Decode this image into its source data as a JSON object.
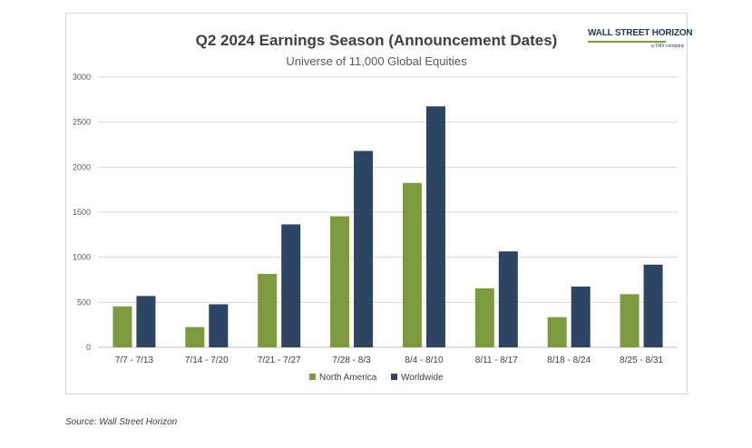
{
  "chart_data": {
    "type": "bar",
    "title": "Q2 2024 Earnings Season (Announcement Dates)",
    "subtitle": "Universe of 11,000 Global Equities",
    "categories": [
      "7/7 - 7/13",
      "7/14 - 7/20",
      "7/21 - 7/27",
      "7/28 - 8/3",
      "8/4 - 8/10",
      "8/11 - 8/17",
      "8/18 - 8/24",
      "8/25 - 8/31"
    ],
    "series": [
      {
        "name": "North America",
        "color": "#7e9a3f",
        "values": [
          455,
          225,
          815,
          1455,
          1825,
          655,
          335,
          590
        ]
      },
      {
        "name": "Worldwide",
        "color": "#2e4463",
        "values": [
          570,
          478,
          1365,
          2180,
          2675,
          1065,
          675,
          918
        ]
      }
    ],
    "ylim": [
      0,
      3000
    ],
    "yticks": [
      "0",
      "500",
      "1000",
      "1500",
      "2000",
      "2500",
      "3000"
    ],
    "ytick_values": [
      0,
      500,
      1000,
      1500,
      2000,
      2500,
      3000
    ],
    "grid": true,
    "legend_position": "bottom-center",
    "xlabel": "",
    "ylabel": ""
  },
  "logo": {
    "main": "WALL STREET HORIZON",
    "sub": "a TMX company"
  },
  "source": "Source: Wall Street Horizon"
}
